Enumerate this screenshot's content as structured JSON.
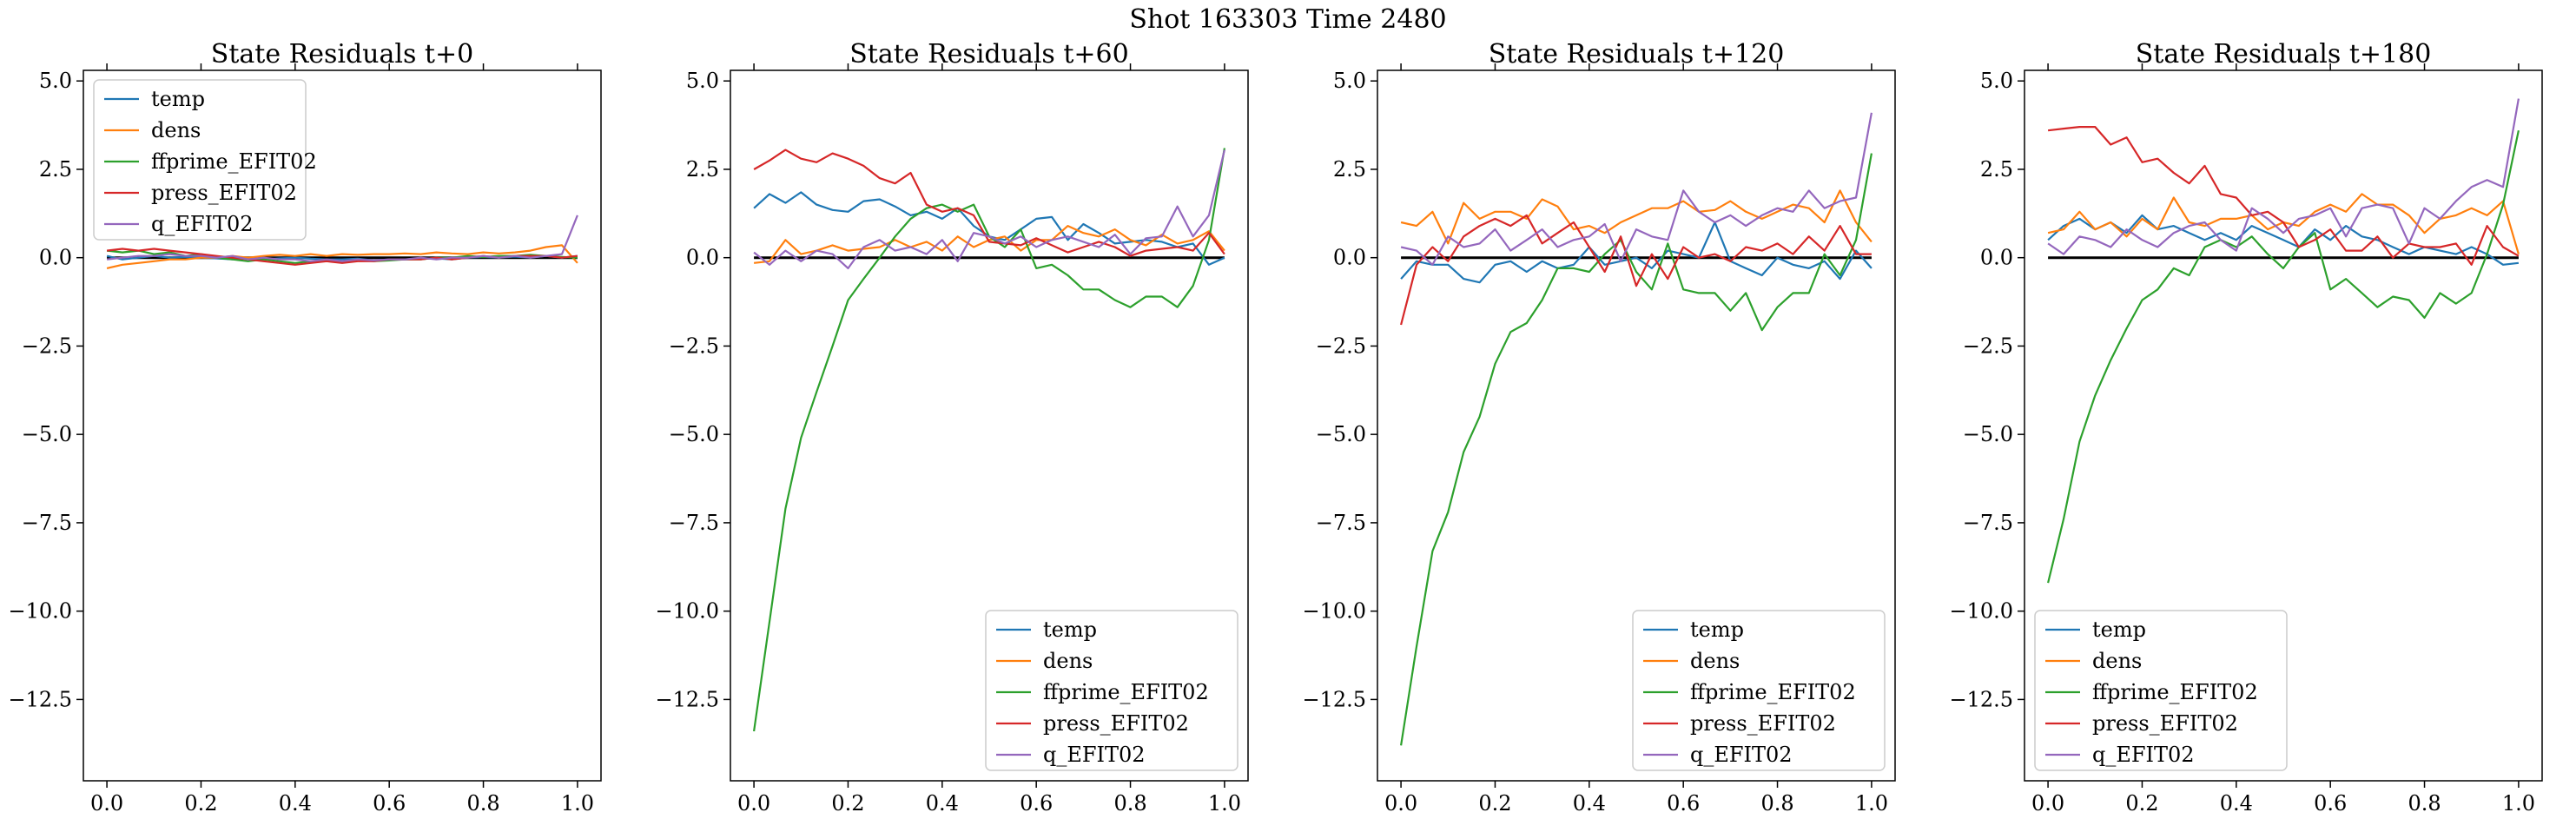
{
  "figure": {
    "suptitle": "Shot 163303   Time 2480"
  },
  "colors": {
    "temp": "#1f77b4",
    "dens": "#ff7f0e",
    "ffprime_EFIT02": "#2ca02c",
    "press_EFIT02": "#d62728",
    "q_EFIT02": "#9467bd",
    "zero_line": "#000000"
  },
  "chart_data": [
    {
      "type": "line",
      "title": "State Residuals t+0",
      "xlabel": "",
      "ylabel": "",
      "xlim": [
        -0.05,
        1.05
      ],
      "ylim": [
        -14.8,
        5.3
      ],
      "xticks": [
        "0.0",
        "0.2",
        "0.4",
        "0.6",
        "0.8",
        "1.0"
      ],
      "yticks": [
        "5.0",
        "2.5",
        "0.0",
        "−2.5",
        "−5.0",
        "−7.5",
        "−10.0",
        "−12.5"
      ],
      "grid": false,
      "legend_position": "upper-left",
      "zero_line": true,
      "x": [
        0.0,
        0.033,
        0.067,
        0.1,
        0.133,
        0.167,
        0.2,
        0.233,
        0.267,
        0.3,
        0.333,
        0.367,
        0.4,
        0.433,
        0.467,
        0.5,
        0.533,
        0.567,
        0.6,
        0.633,
        0.667,
        0.7,
        0.733,
        0.767,
        0.8,
        0.833,
        0.867,
        0.9,
        0.933,
        0.967,
        1.0
      ],
      "series": [
        {
          "name": "temp",
          "values": [
            0.05,
            -0.05,
            0.0,
            0.05,
            0.0,
            0.02,
            0.0,
            -0.02,
            -0.05,
            0.0,
            -0.05,
            -0.02,
            0.0,
            -0.03,
            -0.05,
            -0.05,
            -0.03,
            -0.08,
            -0.05,
            -0.05,
            -0.03,
            -0.02,
            -0.05,
            0.0,
            0.02,
            0.0,
            0.03,
            0.0,
            0.05,
            0.0,
            0.05
          ]
        },
        {
          "name": "dens",
          "values": [
            -0.3,
            -0.2,
            -0.15,
            -0.1,
            -0.05,
            -0.05,
            0.0,
            0.0,
            0.05,
            0.0,
            0.05,
            0.08,
            0.05,
            0.1,
            0.05,
            0.1,
            0.08,
            0.1,
            0.1,
            0.12,
            0.1,
            0.15,
            0.12,
            0.1,
            0.15,
            0.12,
            0.15,
            0.2,
            0.3,
            0.35,
            -0.15
          ]
        },
        {
          "name": "ffprime_EFIT02",
          "values": [
            0.2,
            0.15,
            0.2,
            0.1,
            0.15,
            0.05,
            0.1,
            0.0,
            -0.05,
            -0.1,
            -0.05,
            -0.1,
            -0.15,
            -0.1,
            -0.08,
            -0.12,
            -0.05,
            -0.1,
            -0.08,
            -0.05,
            -0.05,
            0.0,
            0.0,
            0.05,
            0.02,
            0.05,
            0.05,
            0.08,
            0.05,
            0.02,
            0.0
          ]
        },
        {
          "name": "press_EFIT02",
          "values": [
            0.2,
            0.25,
            0.2,
            0.25,
            0.2,
            0.15,
            0.1,
            0.05,
            0.0,
            -0.05,
            -0.1,
            -0.15,
            -0.2,
            -0.15,
            -0.1,
            -0.15,
            -0.1,
            -0.1,
            -0.05,
            -0.05,
            -0.05,
            0.0,
            -0.05,
            0.0,
            0.05,
            0.0,
            0.05,
            0.05,
            0.05,
            0.0,
            0.05
          ]
        },
        {
          "name": "q_EFIT02",
          "values": [
            -0.05,
            0.0,
            0.05,
            0.05,
            0.1,
            0.05,
            0.05,
            0.0,
            0.05,
            -0.05,
            0.0,
            -0.05,
            -0.05,
            -0.1,
            -0.05,
            -0.1,
            -0.05,
            -0.08,
            -0.05,
            -0.05,
            0.0,
            -0.05,
            0.0,
            0.0,
            0.05,
            0.0,
            0.05,
            0.0,
            0.05,
            0.1,
            1.2
          ]
        }
      ]
    },
    {
      "type": "line",
      "title": "State Residuals t+60",
      "xlabel": "",
      "ylabel": "",
      "xlim": [
        -0.05,
        1.05
      ],
      "ylim": [
        -14.8,
        5.3
      ],
      "xticks": [
        "0.0",
        "0.2",
        "0.4",
        "0.6",
        "0.8",
        "1.0"
      ],
      "yticks": [
        "5.0",
        "2.5",
        "0.0",
        "−2.5",
        "−5.0",
        "−7.5",
        "−10.0",
        "−12.5"
      ],
      "grid": false,
      "legend_position": "lower-right",
      "zero_line": true,
      "x": [
        0.0,
        0.033,
        0.067,
        0.1,
        0.133,
        0.167,
        0.2,
        0.233,
        0.267,
        0.3,
        0.333,
        0.367,
        0.4,
        0.433,
        0.467,
        0.5,
        0.533,
        0.567,
        0.6,
        0.633,
        0.667,
        0.7,
        0.733,
        0.767,
        0.8,
        0.833,
        0.867,
        0.9,
        0.933,
        0.967,
        1.0
      ],
      "series": [
        {
          "name": "temp",
          "values": [
            1.4,
            1.8,
            1.55,
            1.85,
            1.5,
            1.35,
            1.3,
            1.6,
            1.65,
            1.45,
            1.2,
            1.3,
            1.1,
            1.4,
            0.9,
            0.6,
            0.5,
            0.8,
            1.1,
            1.15,
            0.5,
            0.95,
            0.7,
            0.4,
            0.45,
            0.5,
            0.45,
            0.3,
            0.4,
            -0.2,
            0.0
          ]
        },
        {
          "name": "dens",
          "values": [
            -0.15,
            -0.1,
            0.5,
            0.1,
            0.2,
            0.35,
            0.2,
            0.25,
            0.3,
            0.5,
            0.3,
            0.45,
            0.2,
            0.6,
            0.3,
            0.5,
            0.6,
            0.2,
            0.5,
            0.5,
            0.9,
            0.7,
            0.6,
            0.8,
            0.5,
            0.35,
            0.65,
            0.4,
            0.5,
            0.75,
            0.2
          ]
        },
        {
          "name": "ffprime_EFIT02",
          "values": [
            -13.4,
            -10.3,
            -7.1,
            -5.1,
            -3.8,
            -2.5,
            -1.2,
            -0.6,
            0.0,
            0.6,
            1.1,
            1.4,
            1.5,
            1.3,
            1.5,
            0.6,
            0.3,
            0.8,
            -0.3,
            -0.2,
            -0.5,
            -0.9,
            -0.9,
            -1.2,
            -1.4,
            -1.1,
            -1.1,
            -1.4,
            -0.8,
            0.5,
            3.1
          ]
        },
        {
          "name": "press_EFIT02",
          "values": [
            2.5,
            2.75,
            3.05,
            2.8,
            2.7,
            2.95,
            2.8,
            2.6,
            2.25,
            2.1,
            2.4,
            1.5,
            1.3,
            1.4,
            1.2,
            0.45,
            0.4,
            0.35,
            0.55,
            0.35,
            0.15,
            0.3,
            0.45,
            0.3,
            0.05,
            0.2,
            0.25,
            0.3,
            0.2,
            0.7,
            0.1
          ]
        },
        {
          "name": "q_EFIT02",
          "values": [
            0.15,
            -0.2,
            0.2,
            -0.1,
            0.2,
            0.1,
            -0.3,
            0.3,
            0.5,
            0.2,
            0.3,
            0.1,
            0.5,
            -0.1,
            0.7,
            0.6,
            0.4,
            0.6,
            0.3,
            0.5,
            0.6,
            0.45,
            0.3,
            0.65,
            0.1,
            0.55,
            0.6,
            1.45,
            0.6,
            1.2,
            3.05
          ]
        }
      ]
    },
    {
      "type": "line",
      "title": "State Residuals t+120",
      "xlabel": "",
      "ylabel": "",
      "xlim": [
        -0.05,
        1.05
      ],
      "ylim": [
        -14.8,
        5.3
      ],
      "xticks": [
        "0.0",
        "0.2",
        "0.4",
        "0.6",
        "0.8",
        "1.0"
      ],
      "yticks": [
        "5.0",
        "2.5",
        "0.0",
        "−2.5",
        "−5.0",
        "−7.5",
        "−10.0",
        "−12.5"
      ],
      "grid": false,
      "legend_position": "lower-right",
      "zero_line": true,
      "x": [
        0.0,
        0.033,
        0.067,
        0.1,
        0.133,
        0.167,
        0.2,
        0.233,
        0.267,
        0.3,
        0.333,
        0.367,
        0.4,
        0.433,
        0.467,
        0.5,
        0.533,
        0.567,
        0.6,
        0.633,
        0.667,
        0.7,
        0.733,
        0.767,
        0.8,
        0.833,
        0.867,
        0.9,
        0.933,
        0.967,
        1.0
      ],
      "series": [
        {
          "name": "temp",
          "values": [
            -0.6,
            -0.1,
            -0.2,
            -0.2,
            -0.6,
            -0.7,
            -0.2,
            -0.1,
            -0.4,
            -0.1,
            -0.3,
            -0.2,
            0.3,
            -0.2,
            -0.1,
            0.0,
            -0.3,
            0.2,
            0.1,
            0.0,
            1.0,
            -0.1,
            -0.3,
            -0.5,
            0.0,
            -0.2,
            -0.3,
            -0.1,
            -0.6,
            0.2,
            -0.3
          ]
        },
        {
          "name": "dens",
          "values": [
            1.0,
            0.9,
            1.3,
            0.4,
            1.55,
            1.1,
            1.3,
            1.3,
            1.1,
            1.65,
            1.45,
            0.8,
            0.9,
            0.7,
            1.0,
            1.2,
            1.4,
            1.4,
            1.6,
            1.3,
            1.35,
            1.6,
            1.3,
            1.1,
            1.3,
            1.5,
            1.4,
            1.0,
            1.9,
            1.0,
            0.45
          ]
        },
        {
          "name": "ffprime_EFIT02",
          "values": [
            -13.8,
            -11.0,
            -8.3,
            -7.2,
            -5.5,
            -4.5,
            -3.0,
            -2.1,
            -1.85,
            -1.2,
            -0.3,
            -0.3,
            -0.4,
            0.1,
            0.5,
            -0.4,
            -0.9,
            0.4,
            -0.9,
            -1.0,
            -1.0,
            -1.5,
            -1.0,
            -2.05,
            -1.4,
            -1.0,
            -1.0,
            0.1,
            -0.5,
            0.5,
            2.95
          ]
        },
        {
          "name": "press_EFIT02",
          "values": [
            -1.9,
            -0.2,
            0.3,
            -0.1,
            0.6,
            0.9,
            1.1,
            0.9,
            1.2,
            0.4,
            0.7,
            1.0,
            0.3,
            -0.4,
            0.6,
            -0.8,
            0.1,
            -0.6,
            0.3,
            0.0,
            0.1,
            -0.1,
            0.3,
            0.2,
            0.4,
            0.1,
            0.6,
            0.2,
            0.9,
            0.1,
            0.1
          ]
        },
        {
          "name": "q_EFIT02",
          "values": [
            0.3,
            0.2,
            -0.2,
            0.6,
            0.3,
            0.4,
            0.8,
            0.2,
            0.5,
            0.8,
            0.3,
            0.5,
            0.6,
            0.95,
            -0.1,
            0.8,
            0.6,
            0.5,
            1.9,
            1.3,
            1.0,
            1.2,
            0.9,
            1.2,
            1.4,
            1.3,
            1.9,
            1.4,
            1.6,
            1.7,
            4.1
          ]
        }
      ]
    },
    {
      "type": "line",
      "title": "State Residuals t+180",
      "xlabel": "",
      "ylabel": "",
      "xlim": [
        -0.05,
        1.05
      ],
      "ylim": [
        -14.8,
        5.3
      ],
      "xticks": [
        "0.0",
        "0.2",
        "0.4",
        "0.6",
        "0.8",
        "1.0"
      ],
      "yticks": [
        "5.0",
        "2.5",
        "0.0",
        "−2.5",
        "−5.0",
        "−7.5",
        "−10.0",
        "−12.5"
      ],
      "grid": false,
      "legend_position": "lower-left",
      "zero_line": true,
      "x": [
        0.0,
        0.033,
        0.067,
        0.1,
        0.133,
        0.167,
        0.2,
        0.233,
        0.267,
        0.3,
        0.333,
        0.367,
        0.4,
        0.433,
        0.467,
        0.5,
        0.533,
        0.567,
        0.6,
        0.633,
        0.667,
        0.7,
        0.733,
        0.767,
        0.8,
        0.833,
        0.867,
        0.9,
        0.933,
        0.967,
        1.0
      ],
      "series": [
        {
          "name": "temp",
          "values": [
            0.5,
            0.9,
            1.1,
            0.8,
            1.0,
            0.7,
            1.2,
            0.8,
            0.9,
            0.7,
            0.5,
            0.7,
            0.5,
            0.9,
            0.7,
            0.5,
            0.3,
            0.8,
            0.5,
            0.9,
            0.6,
            0.5,
            0.3,
            0.1,
            0.3,
            0.2,
            0.1,
            0.3,
            0.1,
            -0.2,
            -0.15
          ]
        },
        {
          "name": "dens",
          "values": [
            0.7,
            0.8,
            1.3,
            0.8,
            1.0,
            0.6,
            1.1,
            0.8,
            1.7,
            1.0,
            0.9,
            1.1,
            1.1,
            1.2,
            0.8,
            1.0,
            0.9,
            1.3,
            1.5,
            1.3,
            1.8,
            1.5,
            1.5,
            1.2,
            0.7,
            1.1,
            1.2,
            1.4,
            1.2,
            1.6,
            0.1
          ]
        },
        {
          "name": "ffprime_EFIT02",
          "values": [
            -9.2,
            -7.4,
            -5.2,
            -3.9,
            -2.9,
            -2.0,
            -1.2,
            -0.9,
            -0.3,
            -0.5,
            0.3,
            0.5,
            0.3,
            0.6,
            0.1,
            -0.3,
            0.3,
            0.7,
            -0.9,
            -0.6,
            -1.0,
            -1.4,
            -1.1,
            -1.2,
            -1.7,
            -1.0,
            -1.3,
            -1.0,
            0.1,
            1.5,
            3.6
          ]
        },
        {
          "name": "press_EFIT02",
          "values": [
            3.6,
            3.65,
            3.7,
            3.7,
            3.2,
            3.4,
            2.7,
            2.8,
            2.4,
            2.1,
            2.6,
            1.8,
            1.7,
            1.2,
            1.3,
            1.0,
            0.3,
            0.5,
            0.8,
            0.2,
            0.2,
            0.6,
            0.0,
            0.4,
            0.3,
            0.3,
            0.4,
            -0.2,
            0.9,
            0.3,
            0.05
          ]
        },
        {
          "name": "q_EFIT02",
          "values": [
            0.4,
            0.1,
            0.6,
            0.5,
            0.3,
            0.8,
            0.5,
            0.3,
            0.7,
            0.9,
            1.0,
            0.5,
            0.2,
            1.4,
            1.1,
            0.7,
            1.1,
            1.2,
            1.4,
            0.6,
            1.4,
            1.5,
            1.4,
            0.4,
            1.4,
            1.1,
            1.6,
            2.0,
            2.2,
            2.0,
            4.5
          ]
        }
      ]
    }
  ]
}
